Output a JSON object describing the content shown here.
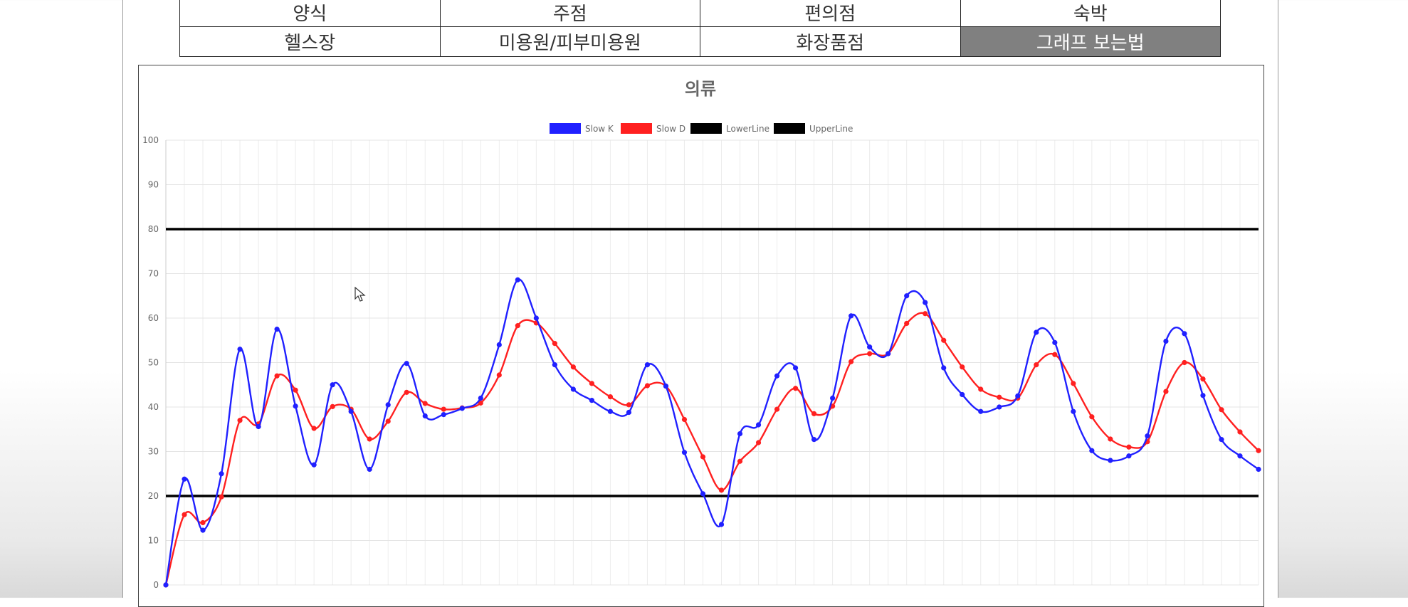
{
  "nav": {
    "row1": [
      "양식",
      "주점",
      "편의점",
      "숙박"
    ],
    "row2": [
      "헬스장",
      "미용원/피부미용원",
      "화장품점",
      "그래프 보는법"
    ]
  },
  "colors": {
    "slow_k": "#2020ff",
    "slow_d": "#ff2020",
    "lines": "#000000",
    "active_tab": "#808080"
  },
  "chart_data": {
    "type": "line",
    "title": "의류",
    "legend": [
      "Slow K",
      "Slow D",
      "LowerLine",
      "UpperLine"
    ],
    "legend_position": "top",
    "ylim": [
      0,
      100
    ],
    "yticks": [
      0,
      10,
      20,
      30,
      40,
      50,
      60,
      70,
      80,
      90,
      100
    ],
    "grid": true,
    "series": [
      {
        "name": "Slow K",
        "color": "#2020ff",
        "values": [
          0,
          23.8,
          12.3,
          25,
          53,
          35.6,
          57.5,
          40.2,
          27,
          45,
          39,
          26,
          40.5,
          49.8,
          38,
          38.3,
          39.7,
          42,
          54,
          68.6,
          60,
          49.5,
          44,
          41.5,
          39,
          38.8,
          49.5,
          44.7,
          29.8,
          20.5,
          13.6,
          34,
          36,
          47,
          48.8,
          32.7,
          42,
          60.5,
          53.5,
          52,
          65,
          63.5,
          48.8,
          42.8,
          39,
          40,
          42.5,
          56.8,
          54.5,
          39,
          30.2,
          28,
          29,
          33.5,
          54.8,
          56.5,
          42.6,
          32.7,
          29,
          26
        ]
      },
      {
        "name": "Slow D",
        "color": "#ff2020",
        "values": [
          0,
          15.8,
          14,
          19.8,
          37,
          36.2,
          47,
          43.8,
          35.2,
          40.1,
          39.5,
          32.8,
          36.8,
          43.3,
          40.8,
          39.5,
          39.8,
          40.9,
          47.2,
          58.3,
          58.9,
          54.3,
          49,
          45.3,
          42.3,
          40.5,
          44.8,
          44.7,
          37.2,
          28.8,
          21.3,
          27.8,
          32,
          39.5,
          44.2,
          38.5,
          40.2,
          50.2,
          52,
          52,
          58.8,
          61,
          55,
          49,
          44,
          42.2,
          42,
          49.5,
          51.8,
          45.3,
          37.8,
          32.8,
          31,
          32.2,
          43.5,
          50,
          46.3,
          39.4,
          34.4,
          30.2
        ]
      },
      {
        "name": "LowerLine",
        "color": "#000000",
        "value": 20
      },
      {
        "name": "UpperLine",
        "color": "#000000",
        "value": 80
      }
    ]
  }
}
